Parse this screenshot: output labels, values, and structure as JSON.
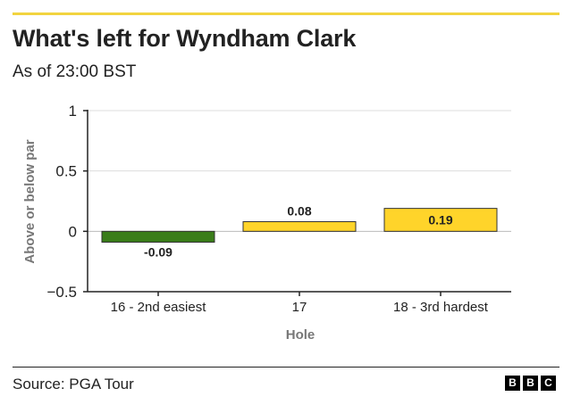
{
  "header": {
    "title": "What's left for Wyndham Clark",
    "subtitle": "As of 23:00 BST"
  },
  "footer": {
    "source": "Source: PGA Tour",
    "logo_letters": [
      "B",
      "B",
      "C"
    ]
  },
  "colors": {
    "accent_rule": "#f2d43f",
    "below_par": "#3a7d1a",
    "above_par": "#ffd42a",
    "axis": "#222222",
    "grid": "#dddddd",
    "axis_label": "#777777"
  },
  "chart_data": {
    "type": "bar",
    "title": "What's left for Wyndham Clark",
    "subtitle": "As of 23:00 BST",
    "xlabel": "Hole",
    "ylabel": "Above or below par",
    "categories": [
      "16 - 2nd easiest",
      "17",
      "18 - 3rd hardest"
    ],
    "values": [
      -0.09,
      0.08,
      0.19
    ],
    "value_labels": [
      "-0.09",
      "0.08",
      "0.19"
    ],
    "bar_colors": [
      "#3a7d1a",
      "#ffd42a",
      "#ffd42a"
    ],
    "ylim": [
      -0.5,
      1
    ],
    "yticks": [
      1,
      0.5,
      0,
      -0.5
    ],
    "ytick_labels": [
      "1",
      "0.5",
      "0",
      "−0.5"
    ],
    "grid": true
  }
}
